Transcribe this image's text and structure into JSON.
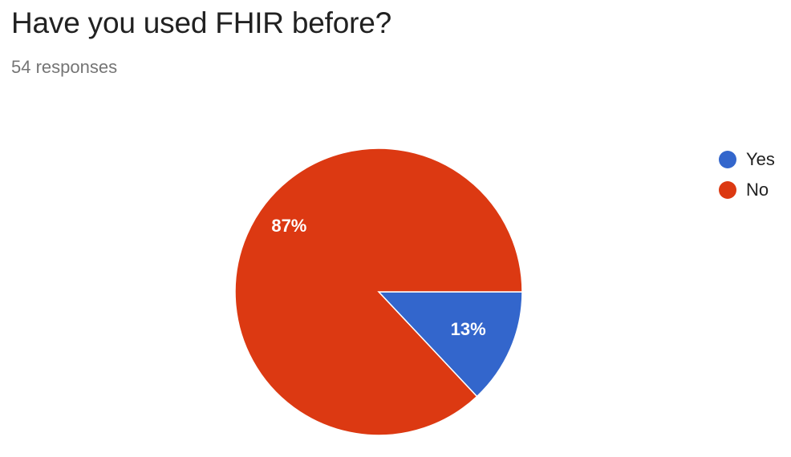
{
  "header": {
    "title": "Have you used FHIR before?",
    "subtitle": "54 responses"
  },
  "chart_data": {
    "type": "pie",
    "title": "Have you used FHIR before?",
    "categories": [
      "Yes",
      "No"
    ],
    "values": [
      13,
      87
    ],
    "labels": [
      "13%",
      "87%"
    ],
    "colors": [
      "#3366cc",
      "#dc3912"
    ],
    "legend_position": "top-right"
  }
}
